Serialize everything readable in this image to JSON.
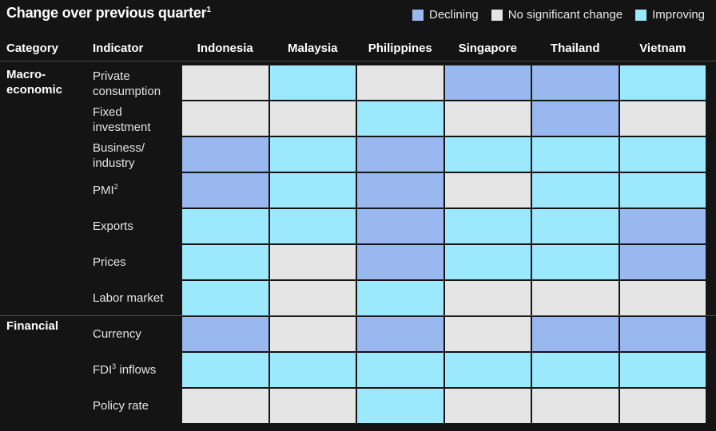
{
  "title": "Change over previous quarter",
  "title_footnote": "1",
  "colors": {
    "Declining": "#99b8ef",
    "No significant change": "#e5e5e5",
    "Improving": "#9ce8fc"
  },
  "legend": [
    "Declining",
    "No significant change",
    "Improving"
  ],
  "headers": {
    "category": "Category",
    "indicator": "Indicator"
  },
  "chart_data": {
    "type": "heatmap",
    "title": "Change over previous quarter",
    "columns": [
      "Indonesia",
      "Malaysia",
      "Philippines",
      "Singapore",
      "Thailand",
      "Vietnam"
    ],
    "categories": [
      {
        "label": "Macro-\neconomic",
        "start_row": 0
      },
      {
        "label": "Financial",
        "start_row": 7
      }
    ],
    "rows": [
      {
        "indicator": "Private\nconsumption",
        "footnote": "",
        "values": [
          "No significant change",
          "Improving",
          "No significant change",
          "Declining",
          "Declining",
          "Improving"
        ]
      },
      {
        "indicator": "Fixed\ninvestment",
        "footnote": "",
        "values": [
          "No significant change",
          "No significant change",
          "Improving",
          "No significant change",
          "Declining",
          "No significant change"
        ]
      },
      {
        "indicator": "Business/\nindustry",
        "footnote": "",
        "values": [
          "Declining",
          "Improving",
          "Declining",
          "Improving",
          "Improving",
          "Improving"
        ]
      },
      {
        "indicator": "PMI",
        "footnote": "2",
        "values": [
          "Declining",
          "Improving",
          "Declining",
          "No significant change",
          "Improving",
          "Improving"
        ]
      },
      {
        "indicator": "Exports",
        "footnote": "",
        "values": [
          "Improving",
          "Improving",
          "Declining",
          "Improving",
          "Improving",
          "Declining"
        ]
      },
      {
        "indicator": "Prices",
        "footnote": "",
        "values": [
          "Improving",
          "No significant change",
          "Declining",
          "Improving",
          "Improving",
          "Declining"
        ]
      },
      {
        "indicator": "Labor market",
        "footnote": "",
        "values": [
          "Improving",
          "No significant change",
          "Improving",
          "No significant change",
          "No significant change",
          "No significant change"
        ]
      },
      {
        "indicator": "Currency",
        "footnote": "",
        "values": [
          "Declining",
          "No significant change",
          "Declining",
          "No significant change",
          "Declining",
          "Declining"
        ]
      },
      {
        "indicator": "FDI inflows",
        "footnote": "3",
        "values": [
          "Improving",
          "Improving",
          "Improving",
          "Improving",
          "Improving",
          "Improving"
        ]
      },
      {
        "indicator": "Policy rate",
        "footnote": "",
        "values": [
          "No significant change",
          "No significant change",
          "Improving",
          "No significant change",
          "No significant change",
          "No significant change"
        ]
      }
    ]
  }
}
